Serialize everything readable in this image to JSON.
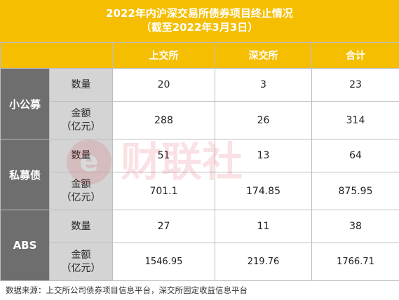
{
  "title": {
    "line1": "2022年内沪深交易所债券项目终止情况",
    "line2": "（截至2022年3月3日）"
  },
  "header": {
    "columns": [
      "上交所",
      "深交所",
      "合计"
    ]
  },
  "groups": [
    {
      "label": "小公募",
      "count_label": "数量",
      "amount_label_1": "金额",
      "amount_label_2": "（亿元）",
      "count": [
        "20",
        "3",
        "23"
      ],
      "amount": [
        "288",
        "26",
        "314"
      ]
    },
    {
      "label": "私募债",
      "count_label": "数量",
      "amount_label_1": "金额",
      "amount_label_2": "（亿元）",
      "count": [
        "51",
        "13",
        "64"
      ],
      "amount": [
        "701.1",
        "174.85",
        "875.95"
      ]
    },
    {
      "label": "ABS",
      "count_label": "数量",
      "amount_label_1": "金额",
      "amount_label_2": "（亿元）",
      "count": [
        "27",
        "11",
        "38"
      ],
      "amount": [
        "1546.95",
        "219.76",
        "1766.71"
      ]
    }
  ],
  "source": "数据来源：上交所公司债券项目信息平台，深交所固定收益信息平台",
  "watermark": {
    "text": "财联社",
    "color": "#d9233b"
  },
  "colors": {
    "header": "#f5be00",
    "group": "#6e6e6e",
    "metric": "#d4d4d4"
  }
}
